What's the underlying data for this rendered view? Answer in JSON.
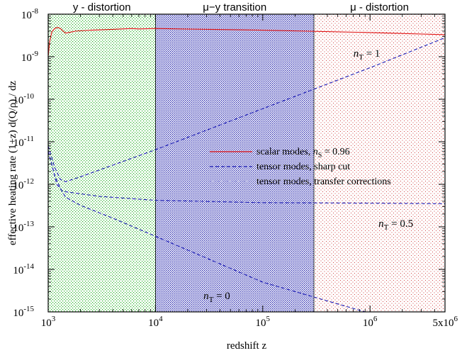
{
  "chart_data": {
    "type": "line",
    "xscale": "log",
    "yscale": "log",
    "xlim": [
      1000,
      5000000
    ],
    "ylim": [
      1e-15,
      1e-08
    ],
    "xlabel": "redshift z",
    "ylabel": "effective heating rate (1+z) d(Q/ρ) / dz",
    "xticks": [
      {
        "value": 1000,
        "label": "10",
        "exp": "3"
      },
      {
        "value": 10000,
        "label": "10",
        "exp": "4"
      },
      {
        "value": 100000,
        "label": "10",
        "exp": "5"
      },
      {
        "value": 1000000,
        "label": "10",
        "exp": "6"
      },
      {
        "value": 5000000,
        "label": "5x10",
        "exp": "6"
      }
    ],
    "yticks": [
      {
        "value": 1e-08,
        "label": "10",
        "exp": "-8"
      },
      {
        "value": 1e-09,
        "label": "10",
        "exp": "-9"
      },
      {
        "value": 1e-10,
        "label": "10",
        "exp": "-10"
      },
      {
        "value": 1e-11,
        "label": "10",
        "exp": "-11"
      },
      {
        "value": 1e-12,
        "label": "10",
        "exp": "-12"
      },
      {
        "value": 1e-13,
        "label": "10",
        "exp": "-13"
      },
      {
        "value": 1e-14,
        "label": "10",
        "exp": "-14"
      },
      {
        "value": 1e-15,
        "label": "10",
        "exp": "-15"
      }
    ],
    "regions": [
      {
        "label": "y - distortion",
        "from": 1000,
        "to": 10000,
        "color": "#22b022",
        "pattern": "sparse"
      },
      {
        "label": "μ−y transition",
        "from": 10000,
        "to": 300000,
        "color": "#2a2ab0",
        "pattern": "dense"
      },
      {
        "label": "μ - distortion",
        "from": 300000,
        "to": 5000000,
        "color": "#d04040",
        "pattern": "sparse"
      }
    ],
    "series": [
      {
        "name": "scalar modes, n_S = 0.96",
        "color": "#e01010",
        "style": "solid",
        "points": [
          [
            1000,
            1e-09
          ],
          [
            1030,
            2.2e-09
          ],
          [
            1080,
            3.8e-09
          ],
          [
            1150,
            4.6e-09
          ],
          [
            1220,
            4.9e-09
          ],
          [
            1300,
            4.6e-09
          ],
          [
            1380,
            4e-09
          ],
          [
            1450,
            3.6e-09
          ],
          [
            1550,
            3.7e-09
          ],
          [
            1800,
            4e-09
          ],
          [
            2500,
            4.2e-09
          ],
          [
            4000,
            4.4e-09
          ],
          [
            6000,
            4.6e-09
          ],
          [
            7000,
            4.5e-09
          ],
          [
            10000,
            4.6e-09
          ],
          [
            100000,
            4.2e-09
          ],
          [
            1000000,
            3.7e-09
          ],
          [
            5000000,
            3.3e-09
          ]
        ]
      },
      {
        "name": "tensor modes, sharp cut",
        "color": "#1a1ab4",
        "style": "dashed",
        "points": [
          [
            1000,
            8e-12
          ],
          [
            1150,
            2.5e-12
          ],
          [
            1300,
            1.3e-12
          ],
          [
            1450,
            1.15e-12
          ],
          [
            2000,
            1.5e-12
          ],
          [
            10000,
            6.5e-12
          ],
          [
            100000,
            6e-11
          ],
          [
            1000000,
            5.5e-10
          ],
          [
            5000000,
            2.8e-09
          ]
        ]
      },
      {
        "name": "tensor modes, sharp cut",
        "color": "#1a1ab4",
        "style": "dashed",
        "points": [
          [
            1000,
            6e-12
          ],
          [
            1100,
            2.5e-12
          ],
          [
            1200,
            1e-12
          ],
          [
            1350,
            7e-13
          ],
          [
            1500,
            6.6e-13
          ],
          [
            3000,
            5.2e-13
          ],
          [
            10000,
            4.2e-13
          ],
          [
            100000,
            3.7e-13
          ],
          [
            1000000,
            3.6e-13
          ],
          [
            5000000,
            3.5e-13
          ]
        ]
      },
      {
        "name": "tensor modes, sharp cut",
        "color": "#1a1ab4",
        "style": "dashed",
        "points": [
          [
            1000,
            6e-12
          ],
          [
            1150,
            1.6e-12
          ],
          [
            1300,
            8e-13
          ],
          [
            1450,
            5e-13
          ],
          [
            2000,
            3.2e-13
          ],
          [
            4000,
            1.6e-13
          ],
          [
            10000,
            6e-14
          ],
          [
            100000,
            5e-15
          ],
          [
            900000,
            1e-15
          ]
        ]
      },
      {
        "name": "tensor modes, transfer corrections",
        "color": "#b0b0e8",
        "style": "dotted",
        "points": []
      }
    ],
    "annotations": [
      {
        "text": "n",
        "sub": "T",
        "rest": " = 1",
        "x": 700000,
        "y": 1e-09
      },
      {
        "text": "n",
        "sub": "T",
        "rest": " = 0.5",
        "x": 1200000,
        "y": 1e-13
      },
      {
        "text": "n",
        "sub": "T",
        "rest": " = 0",
        "x": 28000,
        "y": 2e-15
      }
    ],
    "legend": {
      "position": "center-right",
      "entries": [
        {
          "label": "scalar modes, ",
          "italic": "n",
          "sub": "S",
          "rest": " = 0.96",
          "color": "#e01010",
          "style": "solid"
        },
        {
          "label": "tensor modes, sharp cut",
          "color": "#1a1ab4",
          "style": "dashed"
        },
        {
          "label": "tensor modes, transfer corrections",
          "color": "#b0b0e8",
          "style": "dotted"
        }
      ]
    }
  }
}
